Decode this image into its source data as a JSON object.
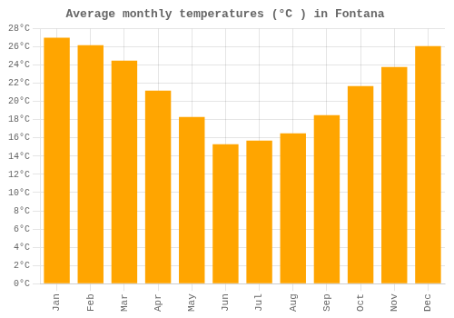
{
  "chart_data": {
    "type": "bar",
    "title": "Average monthly temperatures (°C ) in Fontana",
    "categories": [
      "Jan",
      "Feb",
      "Mar",
      "Apr",
      "May",
      "Jun",
      "Jul",
      "Aug",
      "Sep",
      "Oct",
      "Nov",
      "Dec"
    ],
    "values": [
      27.0,
      26.2,
      24.5,
      21.2,
      18.3,
      15.3,
      15.7,
      16.5,
      18.5,
      21.7,
      23.8,
      26.1
    ],
    "color": "#FFA500",
    "ylim": [
      0,
      28
    ],
    "yticks": [
      {
        "value": 0,
        "label": "0°C"
      },
      {
        "value": 2,
        "label": "2°C"
      },
      {
        "value": 4,
        "label": "4°C"
      },
      {
        "value": 6,
        "label": "6°C"
      },
      {
        "value": 8,
        "label": "8°C"
      },
      {
        "value": 10,
        "label": "10°C"
      },
      {
        "value": 12,
        "label": "12°C"
      },
      {
        "value": 14,
        "label": "14°C"
      },
      {
        "value": 16,
        "label": "16°C"
      },
      {
        "value": 18,
        "label": "18°C"
      },
      {
        "value": 20,
        "label": "20°C"
      },
      {
        "value": 22,
        "label": "22°C"
      },
      {
        "value": 24,
        "label": "24°C"
      },
      {
        "value": 26,
        "label": "26°C"
      },
      {
        "value": 28,
        "label": "28°C"
      }
    ],
    "grid": true
  }
}
